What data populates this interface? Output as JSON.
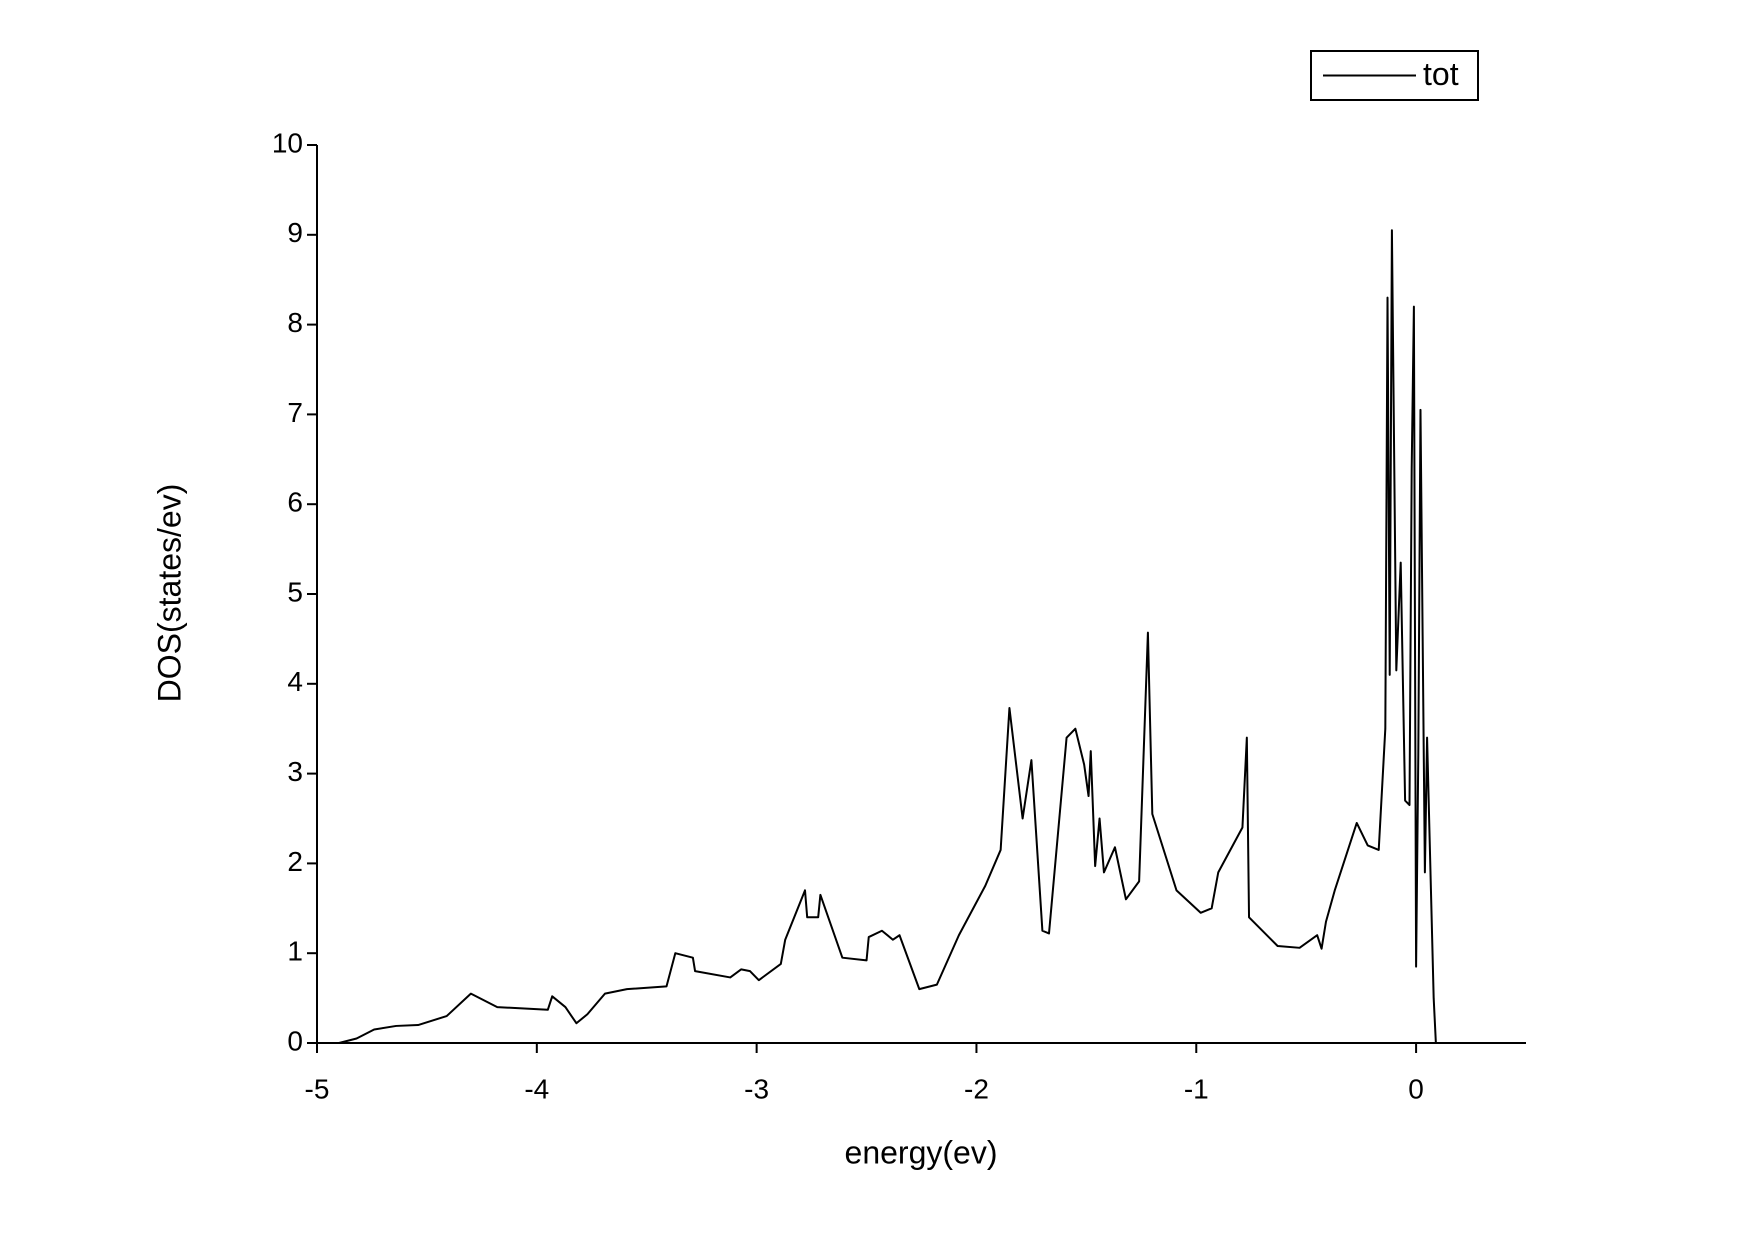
{
  "chart_data": {
    "type": "line",
    "xlabel": "energy(ev)",
    "ylabel": "DOS(states/ev)",
    "legend": "top right",
    "xlim": [
      -5,
      0.5
    ],
    "xticks": [
      -5,
      -4,
      -3,
      -2,
      -1,
      0
    ],
    "ylim": [
      0,
      10
    ],
    "yticks": [
      0,
      1,
      2,
      3,
      4,
      5,
      6,
      7,
      8,
      9,
      10
    ],
    "x": [
      -5,
      -4.9,
      -4.82,
      -4.74,
      -4.64,
      -4.54,
      -4.41,
      -4.3,
      -4.18,
      -3.95,
      -3.93,
      -3.87,
      -3.82,
      -3.77,
      -3.69,
      -3.59,
      -3.41,
      -3.37,
      -3.29,
      -3.28,
      -3.12,
      -3.07,
      -3.03,
      -2.99,
      -2.89,
      -2.87,
      -2.78,
      -2.77,
      -2.72,
      -2.71,
      -2.61,
      -2.5,
      -2.49,
      -2.43,
      -2.38,
      -2.35,
      -2.26,
      -2.18,
      -2.08,
      -1.96,
      -1.89,
      -1.85,
      -1.79,
      -1.75,
      -1.7,
      -1.67,
      -1.59,
      -1.55,
      -1.51,
      -1.49,
      -1.48,
      -1.46,
      -1.44,
      -1.42,
      -1.37,
      -1.32,
      -1.26,
      -1.22,
      -1.2,
      -1.09,
      -0.98,
      -0.93,
      -0.9,
      -0.79,
      -0.77,
      -0.76,
      -0.63,
      -0.53,
      -0.45,
      -0.43,
      -0.41,
      -0.37,
      -0.27,
      -0.22,
      -0.17,
      -0.14,
      -0.13,
      -0.12,
      -0.11,
      -0.09,
      -0.07,
      -0.05,
      -0.03,
      -0.02,
      -0.01,
      0,
      0.01,
      0.02,
      0.04,
      0.05,
      0.08,
      0.09
    ],
    "series": [
      {
        "name": "tot",
        "color": "#000000",
        "values": [
          0,
          0,
          0.05,
          0.15,
          0.19,
          0.2,
          0.3,
          0.55,
          0.4,
          0.37,
          0.52,
          0.4,
          0.22,
          0.32,
          0.55,
          0.6,
          0.63,
          1.0,
          0.95,
          0.8,
          0.73,
          0.82,
          0.8,
          0.7,
          0.88,
          1.15,
          1.7,
          1.4,
          1.4,
          1.65,
          0.95,
          0.92,
          1.18,
          1.25,
          1.15,
          1.2,
          0.6,
          0.65,
          1.2,
          1.75,
          2.15,
          3.73,
          2.5,
          3.15,
          1.25,
          1.22,
          3.4,
          3.5,
          3.1,
          2.75,
          3.25,
          1.97,
          2.5,
          1.9,
          2.18,
          1.6,
          1.8,
          4.57,
          2.55,
          1.7,
          1.45,
          1.5,
          1.9,
          2.4,
          3.4,
          1.4,
          1.08,
          1.06,
          1.2,
          1.05,
          1.35,
          1.7,
          2.45,
          2.2,
          2.15,
          3.5,
          8.3,
          4.1,
          9.05,
          4.15,
          5.35,
          2.7,
          2.65,
          6.4,
          8.2,
          0.85,
          3.2,
          7.05,
          1.9,
          3.4,
          0.5,
          0
        ]
      }
    ]
  }
}
